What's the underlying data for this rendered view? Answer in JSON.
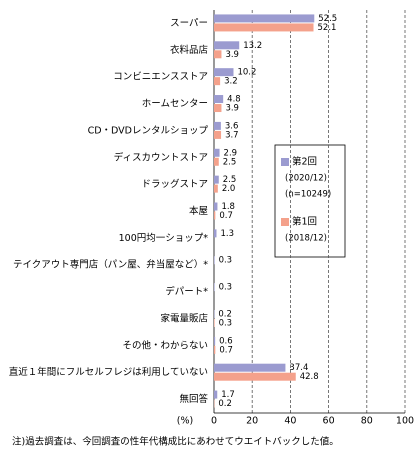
{
  "chart_data": {
    "type": "barh",
    "categories": [
      "スーパー",
      "衣料品店",
      "コンビニエンスストア",
      "ホームセンター",
      "CD・DVDレンタルショップ",
      "ディスカウントストア",
      "ドラッグストア",
      "本屋",
      "100円均一ショップ*",
      "テイクアウト専門店（パン屋、弁当屋など）*",
      "デパート*",
      "家電量販店",
      "その他・わからない",
      "直近１年間にフルセルフレジは利用していない",
      "無回答"
    ],
    "series": [
      {
        "name": "第2回",
        "note": [
          "(2020/12)",
          "(n=10249)"
        ],
        "color": "#9b9bd0",
        "values": [
          52.5,
          13.2,
          10.2,
          4.8,
          3.6,
          2.9,
          2.5,
          1.8,
          1.3,
          0.3,
          0.3,
          0.2,
          0.6,
          37.4,
          1.7
        ],
        "value_labels": [
          "52.5",
          "13.2",
          "10.2",
          "4.8",
          "3.6",
          "2.9",
          "2.5",
          "1.8",
          "1.3",
          "0.3",
          "0.3",
          "0.2",
          "0.6",
          "37.4",
          "1.7"
        ]
      },
      {
        "name": "第1回",
        "note": [
          "(2018/12)"
        ],
        "color": "#f4a18b",
        "values": [
          52.1,
          3.9,
          3.2,
          3.9,
          3.7,
          2.5,
          2.0,
          0.7,
          null,
          null,
          null,
          0.3,
          0.7,
          42.8,
          0.2
        ],
        "value_labels": [
          "52.1",
          "3.9",
          "3.2",
          "3.9",
          "3.7",
          "2.5",
          "2.0",
          "0.7",
          null,
          null,
          null,
          "0.3",
          "0.7",
          "42.8",
          "0.2"
        ]
      }
    ],
    "xlim": [
      0,
      100
    ],
    "xticks": [
      0,
      20,
      40,
      60,
      80,
      100
    ],
    "xlabel": "(%)",
    "grid": true,
    "footnote": "注)過去調査は、今回調査の性年代構成比にあわせてウエイトバックした値。"
  }
}
